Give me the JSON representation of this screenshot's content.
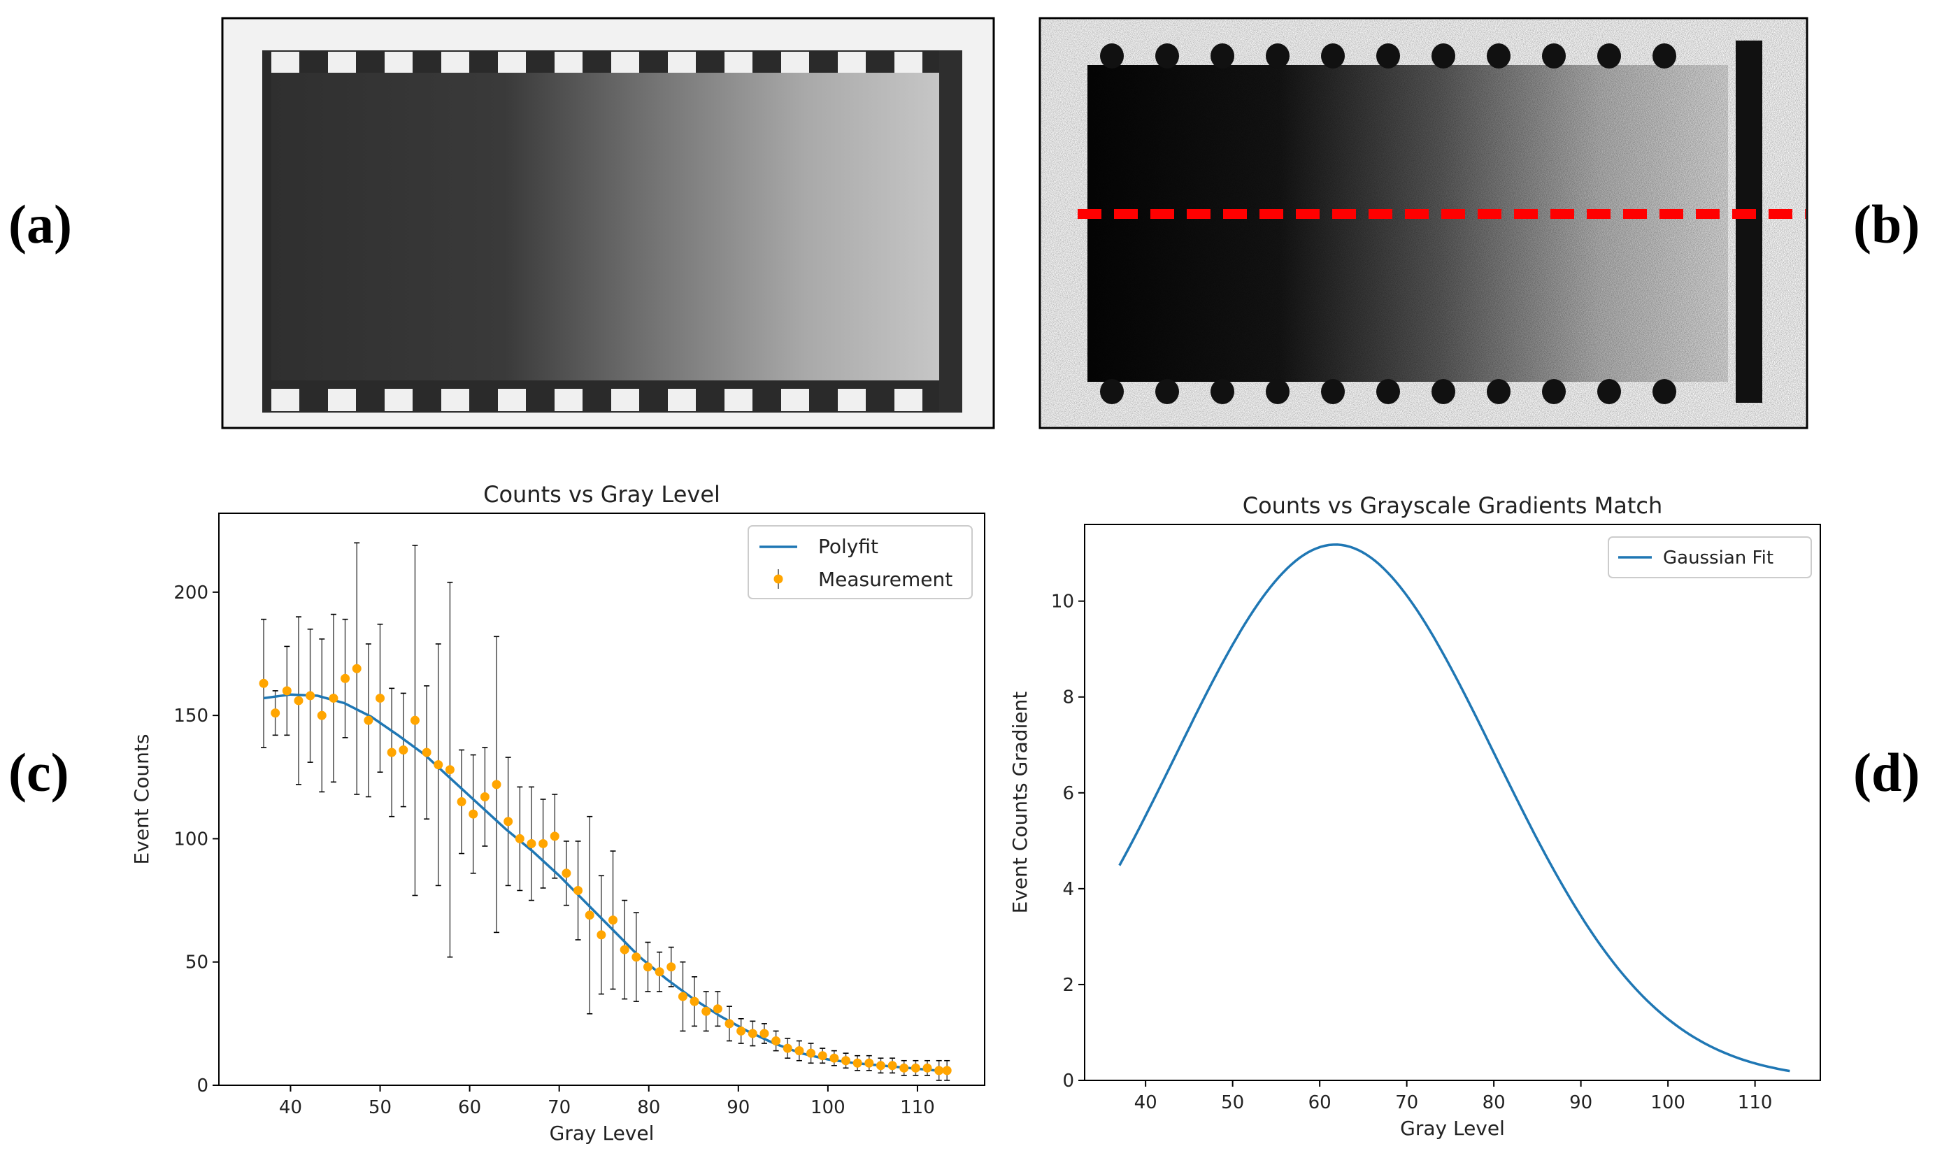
{
  "panel_labels": {
    "a": "(a)",
    "b": "(b)",
    "c": "(c)",
    "d": "(d)"
  },
  "colors": {
    "polyfit": "#1f77b4",
    "measurement": "#ffa500",
    "errorbar": "#555555",
    "dash": "#ff0000"
  },
  "chart_data": [
    {
      "type": "scatter",
      "title": "Counts vs Gray Level",
      "xlabel": "Gray Level",
      "ylabel": "Event Counts",
      "xlim": [
        32,
        117.5
      ],
      "ylim": [
        0,
        232
      ],
      "xticks": [
        40,
        50,
        60,
        70,
        80,
        90,
        100,
        110
      ],
      "yticks": [
        0,
        50,
        100,
        150,
        200
      ],
      "legend": {
        "position": "top-right",
        "entries": [
          "Polyfit",
          "Measurement"
        ]
      },
      "series": [
        {
          "name": "Measurement",
          "x": [
            37,
            38.3,
            39.6,
            40.9,
            42.2,
            43.5,
            44.8,
            46.1,
            47.4,
            48.7,
            50,
            51.3,
            52.6,
            53.9,
            55.2,
            56.5,
            57.8,
            59.1,
            60.4,
            61.7,
            63,
            64.3,
            65.6,
            66.9,
            68.2,
            69.5,
            70.8,
            72.1,
            73.4,
            74.7,
            76,
            77.3,
            78.6,
            79.9,
            81.2,
            82.5,
            83.8,
            85.1,
            86.4,
            87.7,
            89,
            90.3,
            91.6,
            92.9,
            94.2,
            95.5,
            96.8,
            98.1,
            99.4,
            100.7,
            102,
            103.3,
            104.6,
            105.9,
            107.2,
            108.5,
            109.8,
            111.1,
            112.4,
            113.3
          ],
          "y": [
            163,
            151,
            160,
            156,
            158,
            150,
            157,
            165,
            169,
            148,
            157,
            135,
            136,
            148,
            135,
            130,
            128,
            115,
            110,
            117,
            122,
            107,
            100,
            98,
            98,
            101,
            86,
            79,
            69,
            61,
            67,
            55,
            52,
            48,
            46,
            48,
            36,
            34,
            30,
            31,
            25,
            22,
            21,
            21,
            18,
            15,
            14,
            13,
            12,
            11,
            10,
            9,
            9,
            8,
            8,
            7,
            7,
            7,
            6,
            6
          ],
          "yerr": [
            26,
            9,
            18,
            34,
            27,
            31,
            34,
            24,
            51,
            31,
            30,
            26,
            23,
            71,
            27,
            49,
            76,
            21,
            24,
            20,
            60,
            26,
            21,
            23,
            18,
            17,
            13,
            20,
            40,
            24,
            28,
            20,
            18,
            10,
            8,
            8,
            14,
            10,
            8,
            7,
            7,
            5,
            5,
            4,
            4,
            4,
            4,
            4,
            3,
            3,
            3,
            3,
            3,
            3,
            3,
            3,
            3,
            3,
            4,
            4
          ]
        },
        {
          "name": "Polyfit",
          "x": [
            37,
            40,
            43,
            46,
            49,
            52,
            55,
            58,
            61,
            64,
            67,
            70,
            73,
            76,
            79,
            82,
            85,
            88,
            91,
            94,
            97,
            100,
            103,
            106,
            109,
            112,
            113.5
          ],
          "y": [
            157,
            158.5,
            158,
            155,
            149.5,
            142,
            134,
            124,
            114,
            104,
            95,
            85,
            74,
            63,
            52,
            43,
            35,
            28,
            22,
            17,
            13,
            10.5,
            9,
            8,
            7,
            6,
            5.8
          ]
        }
      ]
    },
    {
      "type": "line",
      "title": "Counts vs Grayscale Gradients Match",
      "xlabel": "Gray Level",
      "ylabel": "Event Counts Gradient",
      "xlim": [
        33,
        117.5
      ],
      "ylim": [
        0,
        11.6
      ],
      "xticks": [
        40,
        50,
        60,
        70,
        80,
        90,
        100,
        110
      ],
      "yticks": [
        0,
        2,
        4,
        6,
        8,
        10
      ],
      "legend": {
        "position": "top-right",
        "entries": [
          "Gaussian Fit"
        ]
      },
      "series": [
        {
          "name": "Gaussian Fit",
          "amplitude": 11.18,
          "mean": 61.8,
          "sigma": 18.35,
          "x_range": [
            37,
            114
          ]
        }
      ]
    }
  ]
}
